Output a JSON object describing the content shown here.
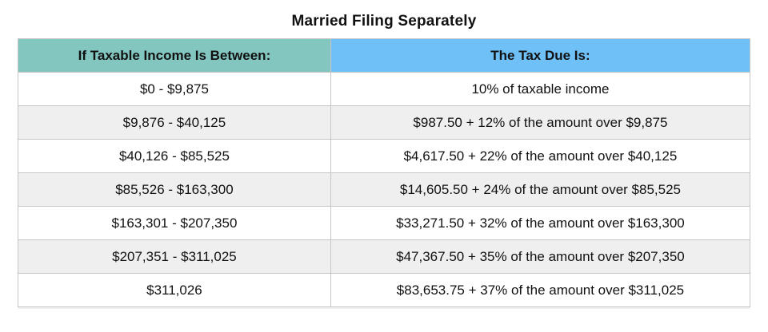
{
  "page": {
    "title": "Married Filing Separately"
  },
  "colors": {
    "income_header_bg": "#82c6bf",
    "tax_header_bg": "#70c0f8",
    "alt_row_bg": "#efefef",
    "border": "#c6c6c6",
    "text": "#111111"
  },
  "chart_data": {
    "type": "table",
    "title": "Married Filing Separately",
    "columns": [
      "If Taxable Income Is Between:",
      "The Tax Due Is:"
    ],
    "rows": [
      [
        "$0 - $9,875",
        "10% of taxable income"
      ],
      [
        "$9,876 - $40,125",
        "$987.50 + 12% of the amount over $9,875"
      ],
      [
        "$40,126 - $85,525",
        "$4,617.50 + 22% of the amount over $40,125"
      ],
      [
        "$85,526 - $163,300",
        "$14,605.50 + 24% of the amount over $85,525"
      ],
      [
        "$163,301 - $207,350",
        "$33,271.50 + 32% of the amount over $163,300"
      ],
      [
        "$207,351 - $311,025",
        "$47,367.50 + 35% of the amount over $207,350"
      ],
      [
        "$311,026",
        "$83,653.75 + 37% of the amount over $311,025"
      ]
    ],
    "layout": {
      "striped": true,
      "stripe_pattern": "even rows gray",
      "header_styles": [
        "teal",
        "blue"
      ]
    }
  }
}
